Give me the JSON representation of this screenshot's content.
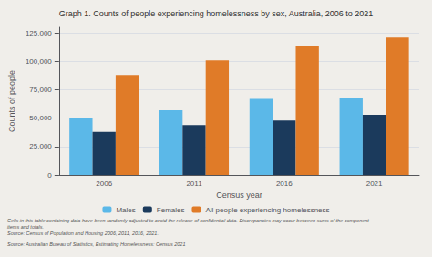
{
  "chart_data": {
    "type": "bar",
    "title": "Graph 1. Counts of people experiencing homelessness by sex, Australia, 2006 to 2021",
    "categories": [
      "2006",
      "2011",
      "2016",
      "2021"
    ],
    "series": [
      {
        "name": "Males",
        "color": "#5bb8e8",
        "values": [
          50000,
          57000,
          67000,
          68000
        ]
      },
      {
        "name": "Females",
        "color": "#1b3a5c",
        "values": [
          38000,
          44000,
          48000,
          53000
        ]
      },
      {
        "name": "All people experiencing homelessness",
        "color": "#e07b28",
        "values": [
          88000,
          101000,
          114000,
          121000
        ]
      }
    ],
    "xlabel": "Census year",
    "ylabel": "Counts of people",
    "ylim": [
      0,
      130000
    ],
    "yticks": [
      0,
      {
        "value": 25000,
        "label": "25,000"
      },
      {
        "value": 50000,
        "label": "50,000"
      },
      {
        "value": 75000,
        "label": "75,000"
      },
      {
        "value": 100000,
        "label": "100,000"
      },
      {
        "value": 125000,
        "label": "125,000"
      }
    ],
    "grid": true,
    "legend": "bottom",
    "annotations": [
      "Cells in this table containing data have been randomly adjusted to avoid the release of confidential data. Discrepancies may occur between sums of the component\nitems and totals.\nSource: Census of Population and Housing 2006, 2011, 2016, 2021.",
      "Source: Australian Bureau of Statistics, Estimating Homelessness: Census 2021"
    ]
  }
}
